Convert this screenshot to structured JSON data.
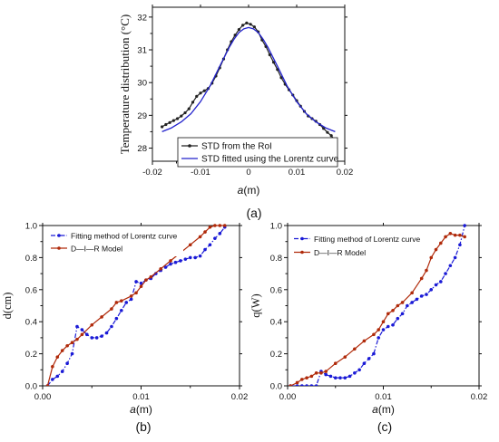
{
  "chart_data": [
    {
      "id": "a",
      "type": "line",
      "panel_label": "(a)",
      "xlabel_var": "a",
      "xlabel_unit": "(m)",
      "ylabel": "Temperature distribution (°C)",
      "xlim": [
        -0.02,
        0.02
      ],
      "ylim": [
        27.6,
        32.3
      ],
      "xticks": [
        -0.02,
        -0.01,
        0,
        0.01,
        0.02
      ],
      "xtick_labels": [
        "-0.02",
        "-0.01",
        "0",
        "0.01",
        "0.02"
      ],
      "yticks": [
        28,
        29,
        30,
        31,
        32
      ],
      "ytick_labels": [
        "28",
        "29",
        "30",
        "31",
        "32"
      ],
      "legend_position": "bottom-right",
      "series": [
        {
          "name": "STD from the RoI",
          "color": "#222222",
          "marker": "dot",
          "x": [
            -0.018,
            -0.0172,
            -0.0164,
            -0.0156,
            -0.0148,
            -0.014,
            -0.0132,
            -0.0124,
            -0.0116,
            -0.0108,
            -0.01,
            -0.0092,
            -0.0084,
            -0.0076,
            -0.0068,
            -0.006,
            -0.0052,
            -0.0044,
            -0.0036,
            -0.0028,
            -0.002,
            -0.0012,
            -0.0004,
            0.0004,
            0.0012,
            0.002,
            0.0028,
            0.0036,
            0.0044,
            0.0052,
            0.006,
            0.0068,
            0.0076,
            0.0084,
            0.0092,
            0.01,
            0.0108,
            0.0116,
            0.0124,
            0.0132,
            0.014,
            0.0148,
            0.0156,
            0.0164,
            0.0172,
            0.018
          ],
          "y": [
            28.65,
            28.72,
            28.78,
            28.84,
            28.9,
            28.98,
            29.08,
            29.2,
            29.4,
            29.58,
            29.68,
            29.75,
            29.82,
            29.98,
            30.2,
            30.45,
            30.72,
            31.0,
            31.25,
            31.45,
            31.62,
            31.75,
            31.82,
            31.78,
            31.7,
            31.55,
            31.3,
            31.1,
            30.85,
            30.62,
            30.4,
            30.15,
            29.95,
            29.78,
            29.62,
            29.45,
            29.28,
            29.12,
            28.98,
            28.9,
            28.82,
            28.72,
            28.6,
            28.48,
            28.38,
            28.22
          ]
        },
        {
          "name": "STD fitted using the Lorentz curve",
          "color": "#2222cc",
          "marker": "none",
          "x": [
            -0.018,
            -0.016,
            -0.014,
            -0.012,
            -0.01,
            -0.008,
            -0.006,
            -0.004,
            -0.003,
            -0.002,
            -0.001,
            0,
            0.001,
            0.002,
            0.003,
            0.004,
            0.006,
            0.008,
            0.01,
            0.012,
            0.014,
            0.016,
            0.018
          ],
          "y": [
            28.5,
            28.62,
            28.8,
            29.05,
            29.42,
            29.9,
            30.5,
            31.08,
            31.33,
            31.53,
            31.64,
            31.68,
            31.64,
            31.53,
            31.33,
            31.08,
            30.5,
            29.9,
            29.42,
            29.05,
            28.8,
            28.62,
            28.5
          ]
        }
      ]
    },
    {
      "id": "b",
      "type": "line",
      "panel_label": "(b)",
      "xlabel_var": "a",
      "xlabel_unit": "(m)",
      "ylabel": "d(cm)",
      "xlim": [
        0,
        0.02
      ],
      "ylim": [
        0,
        1.0
      ],
      "xticks": [
        0,
        0.01,
        0.02
      ],
      "xtick_labels": [
        "0.00",
        "0.01",
        "0.02"
      ],
      "yticks": [
        0,
        0.2,
        0.4,
        0.6,
        0.8,
        1.0
      ],
      "ytick_labels": [
        "0.0",
        "0.2",
        "0.4",
        "0.6",
        "0.8",
        "1.0"
      ],
      "legend_position": "top-left",
      "series": [
        {
          "name": "Fitting method of Lorentz curve",
          "color": "#1a1ad6",
          "style": "dashdot",
          "marker": "dot",
          "x": [
            0.0005,
            0.001,
            0.0015,
            0.002,
            0.0025,
            0.003,
            0.0035,
            0.004,
            0.0045,
            0.005,
            0.0055,
            0.006,
            0.0065,
            0.007,
            0.0075,
            0.008,
            0.0085,
            0.009,
            0.0095,
            0.01,
            0.0105,
            0.011,
            0.0115,
            0.012,
            0.0125,
            0.013,
            0.0135,
            0.014,
            0.0145,
            0.015,
            0.0155,
            0.016,
            0.0165,
            0.017,
            0.0175,
            0.018,
            0.0185
          ],
          "y": [
            0.0,
            0.04,
            0.06,
            0.09,
            0.14,
            0.2,
            0.37,
            0.35,
            0.32,
            0.3,
            0.3,
            0.31,
            0.33,
            0.37,
            0.42,
            0.47,
            0.52,
            0.54,
            0.65,
            0.64,
            0.66,
            0.67,
            0.7,
            0.72,
            0.74,
            0.76,
            0.77,
            0.78,
            0.79,
            0.8,
            0.8,
            0.81,
            0.85,
            0.88,
            0.92,
            0.95,
            0.99
          ]
        },
        {
          "name": "D—I—R Model",
          "color": "#b02a0a",
          "style": "solid",
          "marker": "dot",
          "x": [
            0.0005,
            0.001,
            0.0015,
            0.002,
            0.0025,
            0.003,
            0.0035,
            0.004,
            0.005,
            0.006,
            0.007,
            0.0075,
            0.008,
            0.009,
            0.0095,
            0.01,
            0.0105,
            0.011,
            0.012,
            0.013,
            0.014,
            0.015,
            0.016,
            0.0165,
            0.017,
            0.0175,
            0.018,
            0.0185
          ],
          "y": [
            0.0,
            0.12,
            0.18,
            0.22,
            0.25,
            0.27,
            0.29,
            0.32,
            0.38,
            0.43,
            0.48,
            0.52,
            0.53,
            0.56,
            0.58,
            0.62,
            0.66,
            0.68,
            0.73,
            0.78,
            0.83,
            0.88,
            0.93,
            0.96,
            0.99,
            1.0,
            1.0,
            1.0
          ]
        }
      ]
    },
    {
      "id": "c",
      "type": "line",
      "panel_label": "(c)",
      "xlabel_var": "a",
      "xlabel_unit": "(m)",
      "ylabel": "q(W)",
      "xlim": [
        0,
        0.02
      ],
      "ylim": [
        0,
        1.0
      ],
      "xticks": [
        0,
        0.01,
        0.02
      ],
      "xtick_labels": [
        "0.00",
        "0.01",
        "0.02"
      ],
      "yticks": [
        0,
        0.2,
        0.4,
        0.6,
        0.8,
        1.0
      ],
      "ytick_labels": [
        "0.0",
        "0.2",
        "0.4",
        "0.6",
        "0.8",
        "1.0"
      ],
      "legend_position": "top-left",
      "series": [
        {
          "name": "Fitting method of Lorentz curve",
          "color": "#1a1ad6",
          "style": "dashdot",
          "marker": "dot",
          "x": [
            0.0003,
            0.001,
            0.0015,
            0.002,
            0.0025,
            0.003,
            0.0035,
            0.004,
            0.0045,
            0.005,
            0.0055,
            0.006,
            0.0065,
            0.007,
            0.0075,
            0.008,
            0.0085,
            0.009,
            0.0095,
            0.01,
            0.0105,
            0.011,
            0.0115,
            0.012,
            0.0125,
            0.013,
            0.0135,
            0.014,
            0.0145,
            0.015,
            0.0155,
            0.016,
            0.0165,
            0.017,
            0.0175,
            0.018,
            0.0185
          ],
          "y": [
            0.0,
            0.0,
            0.0,
            0.0,
            0.0,
            0.0,
            0.09,
            0.07,
            0.06,
            0.05,
            0.05,
            0.05,
            0.06,
            0.08,
            0.1,
            0.14,
            0.17,
            0.2,
            0.3,
            0.35,
            0.37,
            0.38,
            0.42,
            0.45,
            0.5,
            0.52,
            0.54,
            0.56,
            0.57,
            0.6,
            0.63,
            0.65,
            0.7,
            0.75,
            0.8,
            0.88,
            1.0
          ]
        },
        {
          "name": "D—I—R Model",
          "color": "#b02a0a",
          "style": "solid",
          "marker": "dot",
          "x": [
            0.0003,
            0.001,
            0.0015,
            0.002,
            0.0025,
            0.003,
            0.0035,
            0.004,
            0.005,
            0.006,
            0.007,
            0.008,
            0.009,
            0.0095,
            0.01,
            0.0105,
            0.011,
            0.0115,
            0.012,
            0.013,
            0.014,
            0.0145,
            0.015,
            0.0155,
            0.016,
            0.0165,
            0.017,
            0.0175,
            0.018,
            0.0185
          ],
          "y": [
            0.0,
            0.02,
            0.04,
            0.05,
            0.06,
            0.08,
            0.08,
            0.09,
            0.14,
            0.18,
            0.23,
            0.28,
            0.32,
            0.35,
            0.4,
            0.45,
            0.47,
            0.5,
            0.52,
            0.58,
            0.67,
            0.72,
            0.8,
            0.85,
            0.89,
            0.93,
            0.95,
            0.94,
            0.94,
            0.93
          ]
        }
      ]
    }
  ]
}
